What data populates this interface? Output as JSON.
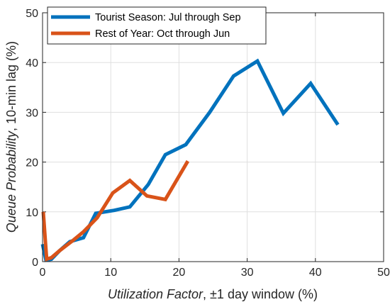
{
  "chart_data": {
    "type": "line",
    "xlim": [
      0,
      50
    ],
    "ylim": [
      0,
      50
    ],
    "xticks": [
      0,
      10,
      20,
      30,
      40,
      50
    ],
    "yticks": [
      0,
      10,
      20,
      30,
      40,
      50
    ],
    "grid": true,
    "legend_position": "top-left",
    "xlabel": {
      "italic": "Utilization Factor",
      "rest": ", ±1 day window (%)"
    },
    "ylabel": {
      "italic": "Queue Probability",
      "rest": ", 10-min lag (%)"
    },
    "series": [
      {
        "name": "Tourist Season: Jul through Sep",
        "color": "#0072BD",
        "x": [
          0,
          0.5,
          1.3,
          2.5,
          4.0,
          6.0,
          7.8,
          10.5,
          12.8,
          15.5,
          18.0,
          21.0,
          24.5,
          28.0,
          31.5,
          35.3,
          39.3,
          43.3
        ],
        "y": [
          3.5,
          0.3,
          0.5,
          2.2,
          4.0,
          4.8,
          9.7,
          10.3,
          11.0,
          15.5,
          21.5,
          23.5,
          30.0,
          37.3,
          40.3,
          29.8,
          35.8,
          27.5
        ]
      },
      {
        "name": "Rest of Year: Oct through Jun",
        "color": "#D95319",
        "x": [
          0.1,
          0.6,
          1.3,
          2.5,
          4.5,
          6.0,
          8.0,
          10.3,
          12.8,
          15.3,
          18.0,
          21.3
        ],
        "y": [
          10.0,
          0.5,
          0.8,
          2.2,
          4.3,
          6.0,
          8.8,
          13.8,
          16.3,
          13.2,
          12.5,
          20.2
        ]
      }
    ]
  }
}
